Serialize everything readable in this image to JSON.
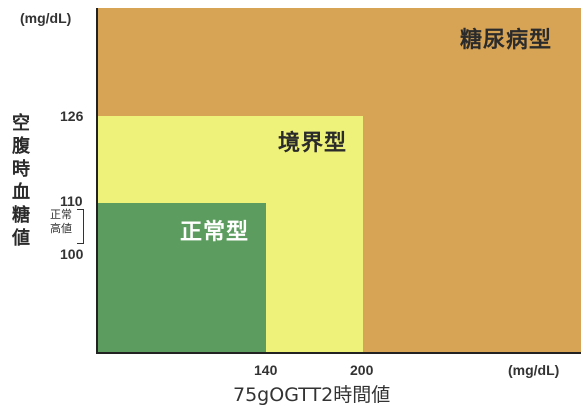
{
  "chart_data": {
    "type": "heatmap",
    "y_unit": "(mg/dL)",
    "x_unit": "(mg/dL)",
    "ylabel": "空腹時血糖値",
    "xlabel": "75gOGTT2時間値",
    "x_ticks": [
      "140",
      "200"
    ],
    "y_ticks": [
      "126",
      "110",
      "100"
    ],
    "y_bracket_label": "正常高値",
    "y_bracket_range": [
      100,
      110
    ],
    "regions": [
      {
        "name": "糖尿病型",
        "color": "#d7a456"
      },
      {
        "name": "境界型",
        "color": "#eef17a",
        "x_max": 200,
        "y_max": 126
      },
      {
        "name": "正常型",
        "color": "#5c9d5f",
        "x_max": 140,
        "y_max": 110
      }
    ]
  }
}
